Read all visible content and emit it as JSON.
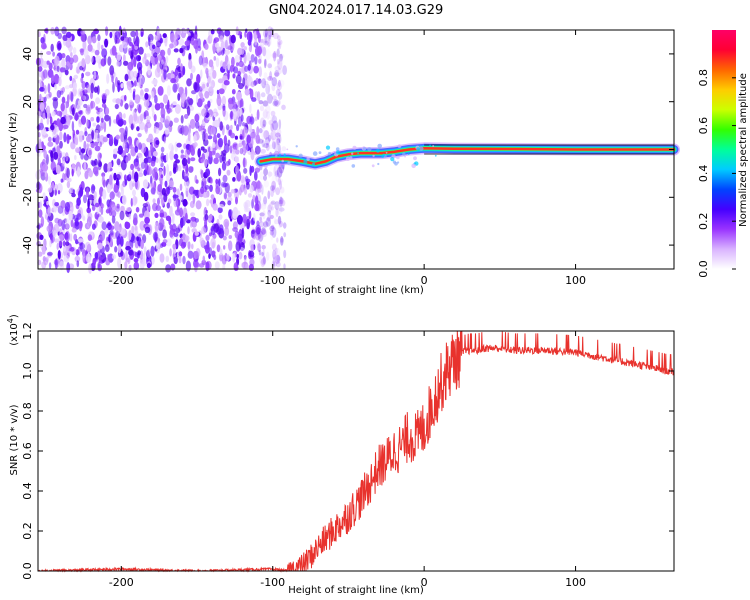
{
  "title": "GN04.2024.017.14.03.G29",
  "chart_data": [
    {
      "type": "heatmap",
      "xlabel": "Height of straight line (km)",
      "ylabel": "Frequency (Hz)",
      "xlim": [
        -255,
        165
      ],
      "ylim": [
        -50,
        50
      ],
      "x_ticks": [
        -200,
        -100,
        0,
        100
      ],
      "x_tick_labels": [
        "-200",
        "-100",
        "0",
        "100"
      ],
      "y_ticks": [
        -40,
        -20,
        0,
        20,
        40
      ],
      "y_tick_labels": [
        "-40",
        "-20",
        "0",
        "20",
        "40"
      ],
      "noise_region_x": [
        -255,
        -92
      ],
      "signal_track": {
        "x": [
          -108,
          -100,
          -90,
          -80,
          -72,
          -65,
          -58,
          -50,
          -42,
          -35,
          -28,
          -20,
          -15,
          -10,
          0,
          20,
          60,
          100,
          140,
          165
        ],
        "frequency": [
          -5,
          -4,
          -4,
          -5,
          -6,
          -5,
          -3,
          -2,
          -1.5,
          -1.5,
          -1.5,
          -1,
          -0.5,
          0,
          0.5,
          0.3,
          0.2,
          0,
          0,
          0
        ]
      },
      "grid": false,
      "colorbar": {
        "label": "Normalized spectral amplitude",
        "range": [
          0,
          1
        ],
        "ticks": [
          0.0,
          0.2,
          0.4,
          0.6,
          0.8
        ],
        "tick_labels": [
          "0.0",
          "0.2",
          "0.4",
          "0.6",
          "0.8"
        ],
        "colors": [
          "#ffffff",
          "#d9b3ff",
          "#9933ff",
          "#4400ff",
          "#0044ff",
          "#00ccff",
          "#00ff99",
          "#33ff00",
          "#ccff00",
          "#ffcc00",
          "#ff6600",
          "#ff0033",
          "#ff0066"
        ]
      }
    },
    {
      "type": "line",
      "xlabel": "Height of straight line (km)",
      "ylabel": "SNR (10 * v/v)",
      "y_multiplier_label": "(x10",
      "y_multiplier_exp": "4",
      "xlim": [
        -255,
        165
      ],
      "ylim": [
        0,
        1.2
      ],
      "x_ticks": [
        -200,
        -100,
        0,
        100
      ],
      "x_tick_labels": [
        "-200",
        "-100",
        "0",
        "100"
      ],
      "y_ticks": [
        0,
        0.2,
        0.4,
        0.6,
        0.8,
        1.0,
        1.2
      ],
      "y_tick_labels": [
        "0.0",
        "0.2",
        "0.4",
        "0.6",
        "0.8",
        "1.0",
        "1.2"
      ],
      "grid": false,
      "series": [
        {
          "color": "#e8322d",
          "x": [
            -255,
            -200,
            -150,
            -100,
            -90,
            -80,
            -75,
            -70,
            -65,
            -60,
            -55,
            -50,
            -45,
            -40,
            -35,
            -30,
            -25,
            -20,
            -15,
            -10,
            -5,
            0,
            5,
            10,
            15,
            20,
            25,
            30,
            35,
            40,
            50,
            60,
            80,
            100,
            120,
            140,
            165
          ],
          "y": [
            0.0,
            0.01,
            0.0,
            0.01,
            0.0,
            0.03,
            0.07,
            0.12,
            0.16,
            0.2,
            0.24,
            0.28,
            0.33,
            0.38,
            0.45,
            0.52,
            0.55,
            0.6,
            0.62,
            0.68,
            0.66,
            0.72,
            0.82,
            0.92,
            1.0,
            1.06,
            1.09,
            1.1,
            1.1,
            1.11,
            1.11,
            1.1,
            1.1,
            1.09,
            1.06,
            1.03,
            0.99
          ]
        }
      ]
    }
  ]
}
